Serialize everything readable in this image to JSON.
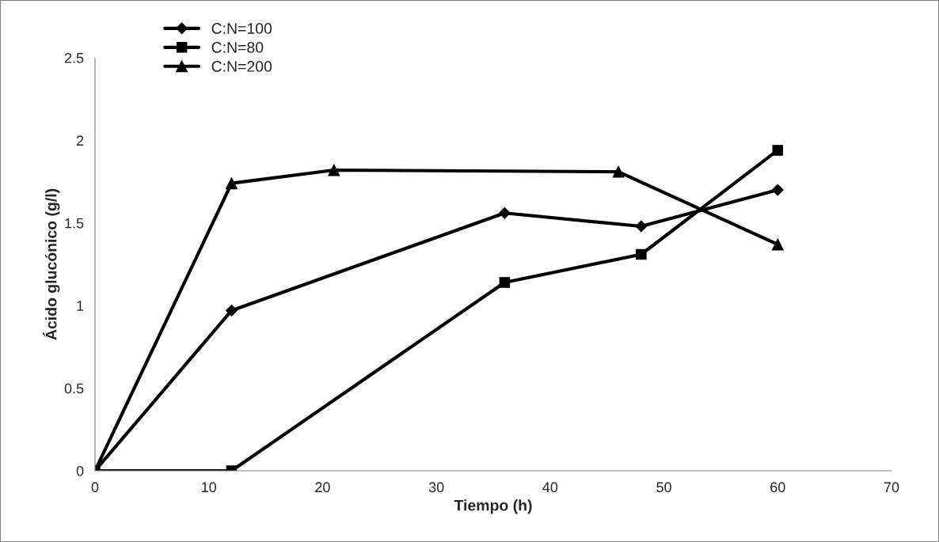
{
  "chart_data": {
    "type": "line",
    "xlabel": "Tiempo (h)",
    "ylabel": "Ácido glucónico (g/l)",
    "xlim": [
      0,
      70
    ],
    "xticks": [
      0,
      10,
      20,
      30,
      40,
      50,
      60,
      70
    ],
    "ylim": [
      0,
      2.5
    ],
    "yticks": [
      0,
      0.5,
      1,
      1.5,
      2,
      2.5
    ],
    "grid": false,
    "legend": "top left",
    "line_style": "solid",
    "series": [
      {
        "name": "C:N=100",
        "color": "#000000",
        "marker": "diamond",
        "x": [
          0,
          12,
          36,
          48,
          60
        ],
        "values": [
          0,
          0.97,
          1.56,
          1.48,
          1.7
        ]
      },
      {
        "name": "C:N=80",
        "color": "#000000",
        "marker": "square",
        "x": [
          0,
          12,
          36,
          48,
          60
        ],
        "values": [
          0,
          0,
          1.14,
          1.31,
          1.94
        ]
      },
      {
        "name": "C:N=200",
        "color": "#000000",
        "marker": "triangle",
        "x": [
          0,
          12,
          21,
          46,
          60
        ],
        "values": [
          0,
          1.74,
          1.82,
          1.81,
          1.37
        ]
      }
    ]
  }
}
